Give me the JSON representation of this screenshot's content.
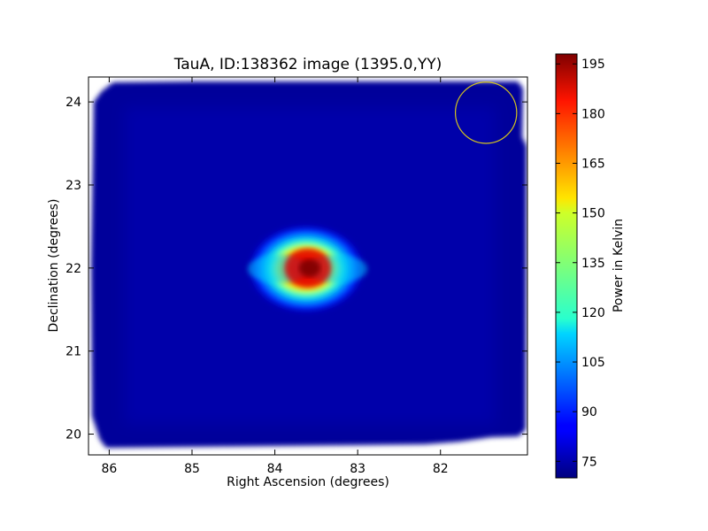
{
  "chart_data": {
    "type": "heatmap",
    "title": "TauA, ID:138362 image (1395.0,YY)",
    "xlabel": "Right Ascension (degrees)",
    "ylabel": "Declination (degrees)",
    "x_inverted": true,
    "xlim": [
      86.25,
      80.95
    ],
    "ylim": [
      19.75,
      24.3
    ],
    "x_ticks": [
      86,
      85,
      84,
      83,
      82
    ],
    "y_ticks": [
      20,
      21,
      22,
      23,
      24
    ],
    "colormap": "jet",
    "background_level_kelvin": 72,
    "peak": {
      "ra": 83.6,
      "dec": 22.0,
      "value_kelvin": 197
    },
    "beam_circle": {
      "ra": 81.45,
      "dec": 23.87,
      "radius_deg": 0.37,
      "color": "#d4c41e"
    },
    "colorbar": {
      "label": "Power in Kelvin",
      "min": 70,
      "max": 198,
      "ticks": [
        75,
        90,
        105,
        120,
        135,
        150,
        165,
        180,
        195
      ]
    }
  }
}
